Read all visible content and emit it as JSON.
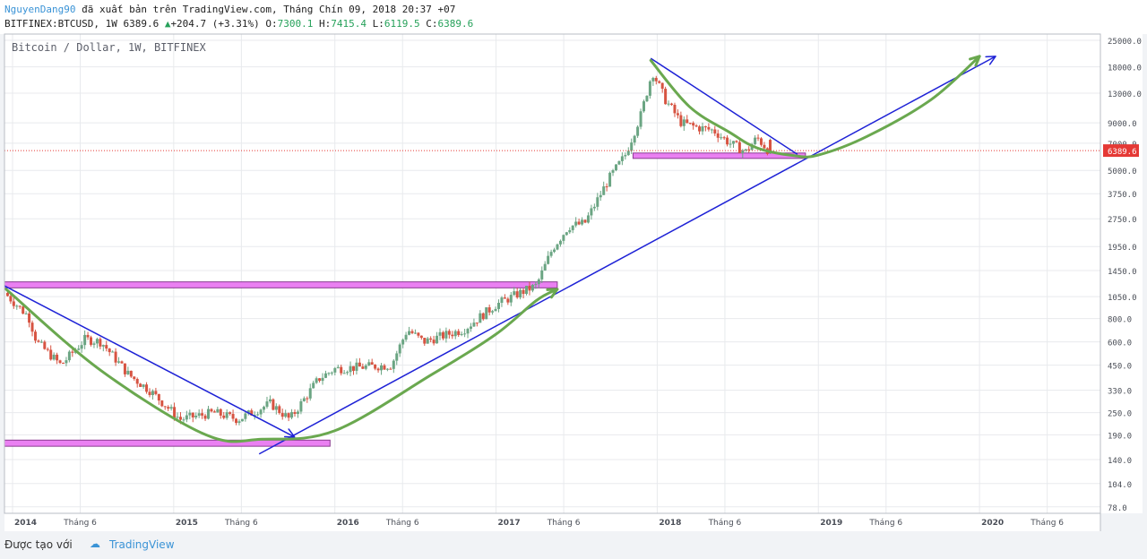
{
  "header": {
    "author": "NguyenDang90",
    "publish_text": " đã xuất bản trên TradingView.com, Tháng Chín 09, 2018 20:37 +07",
    "symbol": "BITFINEX:BTCUSD, 1W 6389.6",
    "change_arrow": "▲",
    "change": "+204.7 (+3.31%)",
    "ohlc_o_label": "O:",
    "ohlc_o": "7300.1",
    "ohlc_h_label": "H:",
    "ohlc_h": "7415.4",
    "ohlc_l_label": "L:",
    "ohlc_l": "6119.5",
    "ohlc_c_label": "C:",
    "ohlc_c": "6389.6"
  },
  "footer": {
    "made_with": "Được tạo với",
    "brand": "TradingView"
  },
  "colors": {
    "up": "#6ba583",
    "down": "#d75442",
    "trendline": "#1e22d6",
    "curve": "#6aa84f",
    "zone": "#ea80f2",
    "price_line": "#e53935",
    "price_badge": "#e53935"
  },
  "chart_data": {
    "type": "candlestick",
    "title": "Bitcoin / Dollar, 1W, BITFINEX",
    "scale": "log",
    "ylim": [
      72,
      27000
    ],
    "xlim": [
      2013.95,
      2020.75
    ],
    "y_ticks": [
      "25000.0",
      "18000.0",
      "13000.0",
      "9000.0",
      "7000.0",
      "5000.0",
      "3750.0",
      "2750.0",
      "1950.0",
      "1450.0",
      "1050.0",
      "800.0",
      "600.0",
      "450.0",
      "330.0",
      "250.0",
      "190.0",
      "140.0",
      "104.0",
      "78.0"
    ],
    "x_ticks": [
      {
        "label": "2014",
        "t": 2014.0,
        "bold": true
      },
      {
        "label": "Tháng 6",
        "t": 2014.42,
        "bold": false
      },
      {
        "label": "2015",
        "t": 2015.0,
        "bold": true
      },
      {
        "label": "Tháng 6",
        "t": 2015.42,
        "bold": false
      },
      {
        "label": "2016",
        "t": 2016.0,
        "bold": true
      },
      {
        "label": "Tháng 6",
        "t": 2016.42,
        "bold": false
      },
      {
        "label": "2017",
        "t": 2017.0,
        "bold": true
      },
      {
        "label": "Tháng 6",
        "t": 2017.42,
        "bold": false
      },
      {
        "label": "2018",
        "t": 2018.0,
        "bold": true
      },
      {
        "label": "Tháng 6",
        "t": 2018.42,
        "bold": false
      },
      {
        "label": "2019",
        "t": 2019.0,
        "bold": true
      },
      {
        "label": "Tháng 6",
        "t": 2019.42,
        "bold": false
      },
      {
        "label": "2020",
        "t": 2020.0,
        "bold": true
      },
      {
        "label": "Tháng 6",
        "t": 2020.42,
        "bold": false
      }
    ],
    "last_price": "6389.6",
    "price_anchors": [
      [
        2013.95,
        1100
      ],
      [
        2014.1,
        820
      ],
      [
        2014.15,
        600
      ],
      [
        2014.3,
        450
      ],
      [
        2014.45,
        620
      ],
      [
        2014.55,
        600
      ],
      [
        2014.72,
        400
      ],
      [
        2014.85,
        330
      ],
      [
        2015.04,
        230
      ],
      [
        2015.25,
        250
      ],
      [
        2015.4,
        230
      ],
      [
        2015.6,
        280
      ],
      [
        2015.72,
        230
      ],
      [
        2015.9,
        380
      ],
      [
        2016.0,
        430
      ],
      [
        2016.35,
        450
      ],
      [
        2016.45,
        700
      ],
      [
        2016.55,
        600
      ],
      [
        2016.8,
        700
      ],
      [
        2017.0,
        950
      ],
      [
        2017.15,
        1100
      ],
      [
        2017.25,
        1200
      ],
      [
        2017.35,
        1900
      ],
      [
        2017.45,
        2500
      ],
      [
        2017.55,
        2600
      ],
      [
        2017.7,
        4500
      ],
      [
        2017.8,
        6000
      ],
      [
        2017.9,
        10000
      ],
      [
        2017.97,
        17000
      ],
      [
        2018.05,
        12000
      ],
      [
        2018.15,
        9000
      ],
      [
        2018.25,
        8500
      ],
      [
        2018.35,
        8200
      ],
      [
        2018.45,
        7000
      ],
      [
        2018.55,
        6300
      ],
      [
        2018.62,
        7500
      ],
      [
        2018.69,
        6389.6
      ]
    ],
    "annotations": {
      "zones": [
        {
          "t0": 2013.95,
          "t1": 2017.38,
          "p0": 1170,
          "p1": 1260
        },
        {
          "t0": 2013.95,
          "t1": 2015.97,
          "p0": 165,
          "p1": 178
        },
        {
          "t0": 2017.85,
          "t1": 2018.92,
          "p0": 5800,
          "p1": 6200
        }
      ],
      "trendlines": [
        {
          "t0": 2013.95,
          "p0": 1200,
          "t1": 2015.75,
          "p1": 185,
          "arrow": true
        },
        {
          "t0": 2015.53,
          "p0": 150,
          "t1": 2020.1,
          "p1": 20500,
          "arrow": true
        },
        {
          "t0": 2017.96,
          "p0": 20000,
          "t1": 2018.87,
          "p1": 6100,
          "arrow": false
        }
      ],
      "curves": [
        {
          "points": [
            [
              2013.96,
              1150
            ],
            [
              2014.55,
              420
            ],
            [
              2015.2,
              190
            ],
            [
              2015.55,
              180
            ],
            [
              2016.0,
              200
            ],
            [
              2016.6,
              400
            ],
            [
              2017.0,
              660
            ],
            [
              2017.25,
              1000
            ],
            [
              2017.38,
              1150
            ]
          ],
          "arrow": true
        },
        {
          "points": [
            [
              2017.96,
              19500
            ],
            [
              2018.2,
              11000
            ],
            [
              2018.45,
              8000
            ],
            [
              2018.62,
              6600
            ],
            [
              2018.85,
              6000
            ],
            [
              2019.0,
              6050
            ],
            [
              2019.3,
              7600
            ],
            [
              2019.7,
              12000
            ],
            [
              2020.0,
              20500
            ]
          ],
          "arrow": true
        }
      ]
    }
  }
}
